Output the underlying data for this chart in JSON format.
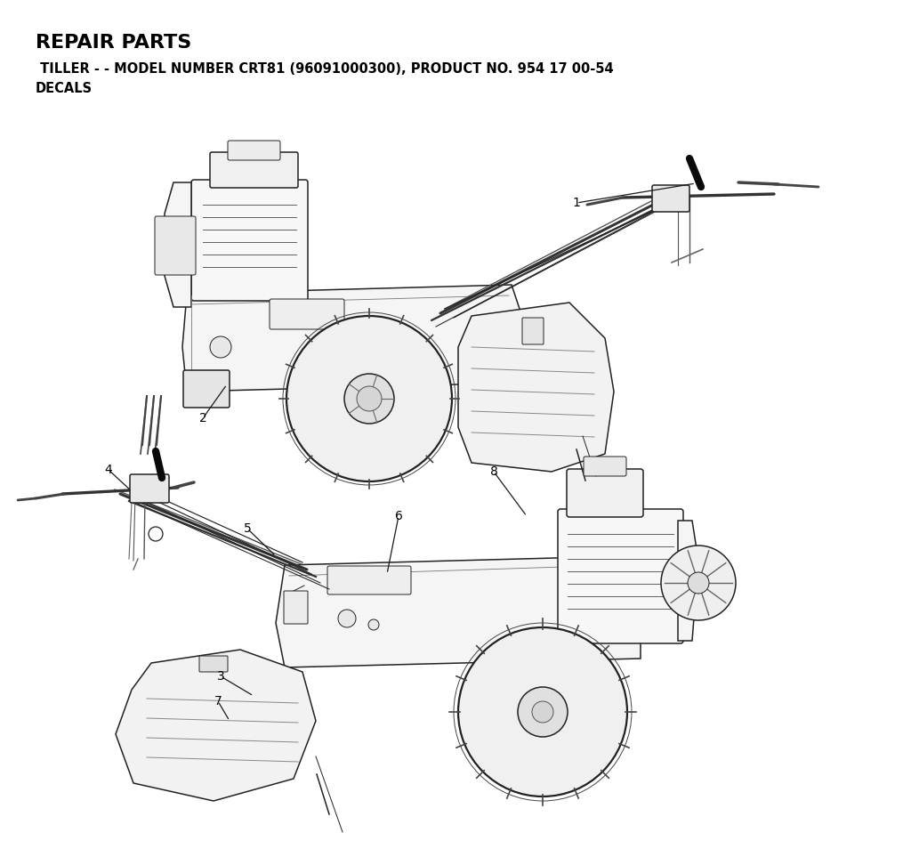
{
  "title": "REPAIR PARTS",
  "subtitle": " TILLER - - MODEL NUMBER CRT81 (96091000300), PRODUCT NO. 954 17 00-54",
  "subtitle2": "DECALS",
  "background_color": "#ffffff",
  "text_color": "#000000",
  "title_fontsize": 16,
  "subtitle_fontsize": 10.5,
  "fig_width": 10.24,
  "fig_height": 9.72,
  "dpi": 100
}
